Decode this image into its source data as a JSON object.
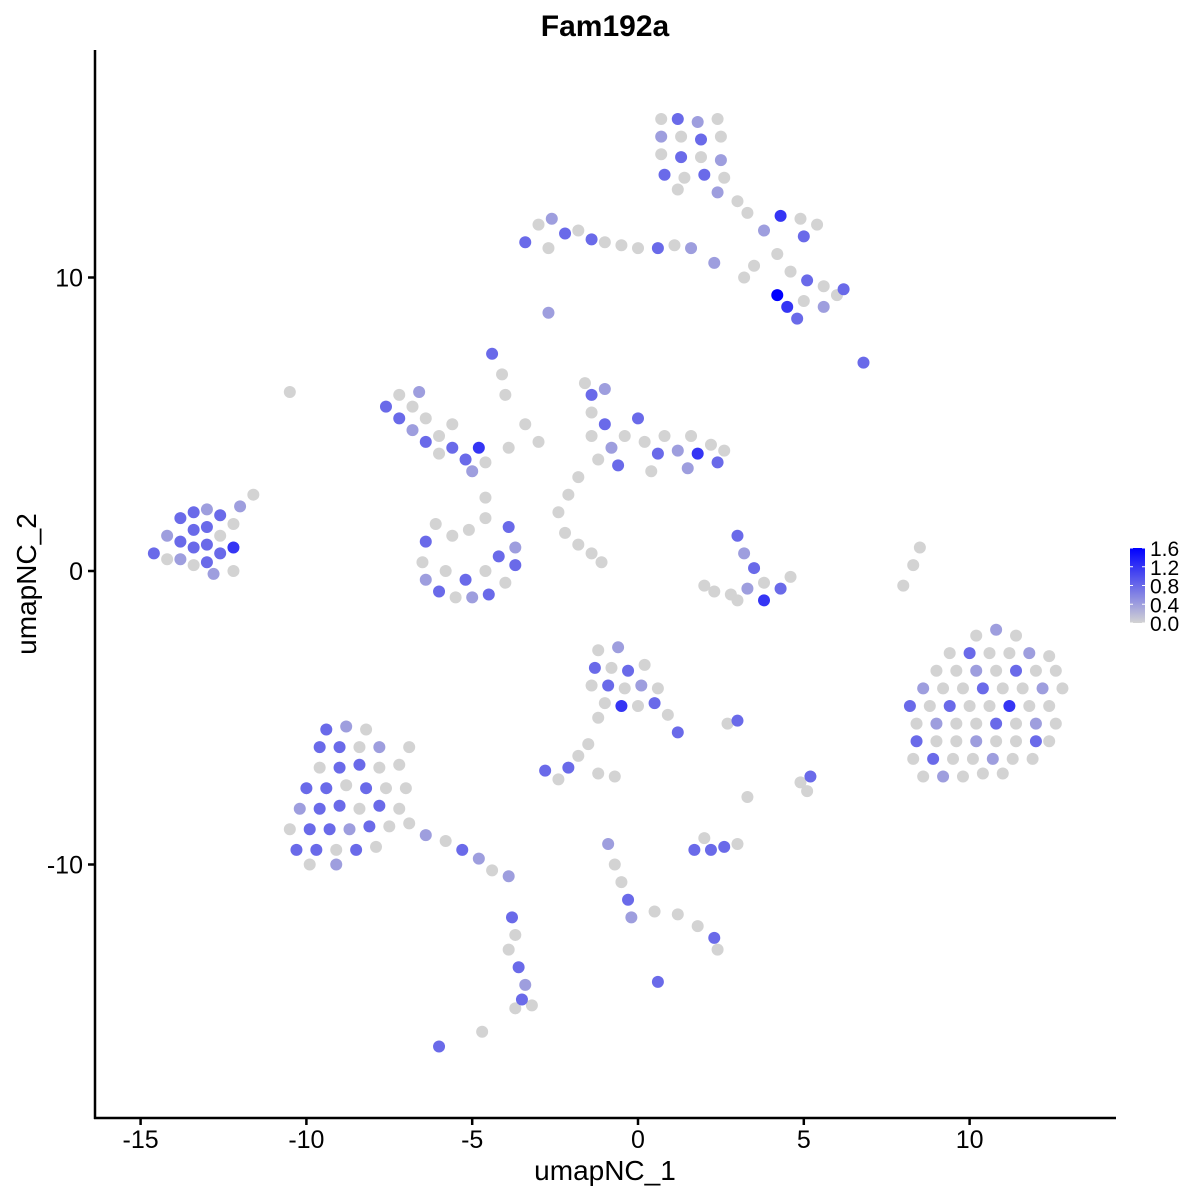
{
  "chart_data": {
    "type": "scatter",
    "title": "Fam192a",
    "xlabel": "umapNC_1",
    "ylabel": "umapNC_2",
    "xlim": [
      -16.4,
      14.4
    ],
    "ylim": [
      -18.6,
      17.75
    ],
    "xticks": [
      -15,
      -10,
      -5,
      0,
      5,
      10
    ],
    "yticks": [
      -10,
      0,
      10
    ],
    "grid": false,
    "legend": {
      "placement": "right",
      "type": "colorbar",
      "ticks": [
        "1.6",
        "1.2",
        "0.8",
        "0.4",
        "0.0"
      ],
      "range": [
        0,
        1.6
      ],
      "low_color": "#d3d3d3",
      "high_color": "#0000ff"
    },
    "point_format": [
      "umapNC_1",
      "umapNC_2",
      "expression"
    ],
    "points": [
      [
        -14.6,
        0.6,
        0.8
      ],
      [
        -14.2,
        1.2,
        0.4
      ],
      [
        -14.2,
        0.4,
        0
      ],
      [
        -13.8,
        1.8,
        0.8
      ],
      [
        -13.8,
        1.0,
        0.8
      ],
      [
        -13.8,
        0.4,
        0.4
      ],
      [
        -13.4,
        2.0,
        0.8
      ],
      [
        -13.4,
        1.4,
        0.8
      ],
      [
        -13.4,
        0.8,
        0.8
      ],
      [
        -13.4,
        0.2,
        0
      ],
      [
        -13.0,
        2.1,
        0.4
      ],
      [
        -13.0,
        1.5,
        0.8
      ],
      [
        -13.0,
        0.9,
        0.8
      ],
      [
        -13.0,
        0.3,
        0.8
      ],
      [
        -12.6,
        1.9,
        0.8
      ],
      [
        -12.6,
        1.2,
        0
      ],
      [
        -12.6,
        0.6,
        0.8
      ],
      [
        -12.2,
        1.6,
        0
      ],
      [
        -12.2,
        0.8,
        1.2
      ],
      [
        -12.2,
        0,
        0
      ],
      [
        -11.6,
        2.6,
        0
      ],
      [
        -12.0,
        2.2,
        0.4
      ],
      [
        -12.8,
        -0.1,
        0.4
      ],
      [
        0.7,
        15.4,
        0
      ],
      [
        1.2,
        15.4,
        0.8
      ],
      [
        1.8,
        15.3,
        0.4
      ],
      [
        2.4,
        15.4,
        0
      ],
      [
        0.7,
        14.8,
        0.4
      ],
      [
        1.3,
        14.8,
        0
      ],
      [
        1.9,
        14.7,
        0.8
      ],
      [
        2.5,
        14.8,
        0
      ],
      [
        0.7,
        14.2,
        0
      ],
      [
        1.3,
        14.1,
        0.8
      ],
      [
        1.9,
        14.1,
        0
      ],
      [
        2.5,
        14.0,
        0.4
      ],
      [
        0.8,
        13.5,
        0.8
      ],
      [
        1.4,
        13.4,
        0
      ],
      [
        2.0,
        13.5,
        0.8
      ],
      [
        2.6,
        13.4,
        0
      ],
      [
        1.2,
        13.0,
        0
      ],
      [
        2.4,
        12.9,
        0.4
      ],
      [
        3.0,
        12.6,
        0
      ],
      [
        -3.0,
        11.8,
        0
      ],
      [
        -2.6,
        12.0,
        0.4
      ],
      [
        -2.2,
        11.5,
        0.8
      ],
      [
        -1.8,
        11.6,
        0
      ],
      [
        -1.4,
        11.3,
        0.8
      ],
      [
        -1.0,
        11.2,
        0
      ],
      [
        -0.5,
        11.1,
        0
      ],
      [
        0.0,
        11.0,
        0
      ],
      [
        0.6,
        11.0,
        0.8
      ],
      [
        1.1,
        11.1,
        0
      ],
      [
        1.6,
        11.0,
        0.4
      ],
      [
        -3.4,
        11.2,
        0.8
      ],
      [
        -2.7,
        11.0,
        0
      ],
      [
        3.3,
        12.2,
        0
      ],
      [
        3.8,
        11.6,
        0.4
      ],
      [
        4.3,
        12.1,
        1.2
      ],
      [
        4.9,
        12.0,
        0
      ],
      [
        5.4,
        11.8,
        0
      ],
      [
        5.0,
        11.4,
        0.8
      ],
      [
        4.2,
        10.8,
        0
      ],
      [
        4.6,
        10.2,
        0
      ],
      [
        5.1,
        9.9,
        0.8
      ],
      [
        5.6,
        9.7,
        0
      ],
      [
        6.0,
        9.4,
        0
      ],
      [
        5.6,
        9.0,
        0.4
      ],
      [
        5.0,
        9.2,
        0
      ],
      [
        4.5,
        9.0,
        1.2
      ],
      [
        4.8,
        8.6,
        0.8
      ],
      [
        4.2,
        9.4,
        1.6
      ],
      [
        3.5,
        10.4,
        0
      ],
      [
        2.3,
        10.5,
        0.4
      ],
      [
        6.2,
        9.6,
        0.8
      ],
      [
        3.2,
        10.0,
        0
      ],
      [
        -2.7,
        8.8,
        0.4
      ],
      [
        6.8,
        7.1,
        0.8
      ],
      [
        -10.5,
        6.1,
        0
      ],
      [
        -4.4,
        7.4,
        0.8
      ],
      [
        -4.1,
        6.7,
        0
      ],
      [
        -7.6,
        5.6,
        0.8
      ],
      [
        -7.2,
        6.0,
        0
      ],
      [
        -7.2,
        5.2,
        0.8
      ],
      [
        -6.8,
        5.6,
        0
      ],
      [
        -6.8,
        4.8,
        0.4
      ],
      [
        -6.4,
        5.2,
        0
      ],
      [
        -6.4,
        4.4,
        0.8
      ],
      [
        -6.0,
        4.6,
        0
      ],
      [
        -6.0,
        4.0,
        0
      ],
      [
        -5.6,
        4.2,
        0.8
      ],
      [
        -5.2,
        3.8,
        0.8
      ],
      [
        -5.0,
        3.4,
        0.4
      ],
      [
        -4.6,
        3.7,
        0
      ],
      [
        -4.8,
        4.2,
        1.2
      ],
      [
        -5.6,
        5.0,
        0
      ],
      [
        -6.6,
        6.1,
        0.4
      ],
      [
        -3.9,
        4.2,
        0
      ],
      [
        -3.4,
        5.0,
        0
      ],
      [
        -4.0,
        6.0,
        0
      ],
      [
        -4.6,
        2.5,
        0
      ],
      [
        -4.6,
        1.8,
        0
      ],
      [
        -6.4,
        1.0,
        0.8
      ],
      [
        -6.5,
        0.3,
        0
      ],
      [
        -6.4,
        -0.3,
        0.4
      ],
      [
        -6.0,
        -0.7,
        0.8
      ],
      [
        -5.5,
        -0.9,
        0
      ],
      [
        -5.0,
        -0.9,
        0.4
      ],
      [
        -4.5,
        -0.8,
        0.8
      ],
      [
        -4.0,
        -0.4,
        0
      ],
      [
        -3.7,
        0.2,
        0.8
      ],
      [
        -3.7,
        0.8,
        0.4
      ],
      [
        -3.9,
        1.5,
        0.8
      ],
      [
        -5.8,
        0.0,
        0
      ],
      [
        -5.2,
        -0.3,
        0.8
      ],
      [
        -4.6,
        0.0,
        0
      ],
      [
        -4.2,
        0.5,
        0.8
      ],
      [
        -6.1,
        1.6,
        0
      ],
      [
        -5.6,
        1.2,
        0
      ],
      [
        -5.1,
        1.4,
        0
      ],
      [
        -1.4,
        6.0,
        0.8
      ],
      [
        -1.0,
        6.2,
        0.4
      ],
      [
        -1.4,
        5.4,
        0
      ],
      [
        -1.0,
        5.0,
        0.8
      ],
      [
        -1.4,
        4.6,
        0
      ],
      [
        -0.8,
        4.2,
        0.4
      ],
      [
        -1.2,
        3.8,
        0
      ],
      [
        -0.6,
        3.6,
        0.8
      ],
      [
        -0.4,
        4.6,
        0
      ],
      [
        0.0,
        5.2,
        0.8
      ],
      [
        0.2,
        4.4,
        0
      ],
      [
        0.6,
        4.0,
        0.8
      ],
      [
        0.8,
        4.6,
        0
      ],
      [
        1.2,
        4.1,
        0.4
      ],
      [
        1.6,
        4.6,
        0
      ],
      [
        1.8,
        4.0,
        1.2
      ],
      [
        2.2,
        4.3,
        0
      ],
      [
        2.4,
        3.7,
        0.8
      ],
      [
        2.6,
        4.1,
        0
      ],
      [
        1.5,
        3.5,
        0.4
      ],
      [
        0.4,
        3.4,
        0
      ],
      [
        -1.8,
        3.2,
        0
      ],
      [
        -2.1,
        2.6,
        0
      ],
      [
        -2.4,
        2.0,
        0
      ],
      [
        -1.6,
        6.4,
        0
      ],
      [
        -3.0,
        4.4,
        0
      ],
      [
        -2.2,
        1.3,
        0
      ],
      [
        -1.8,
        0.9,
        0
      ],
      [
        -1.4,
        0.6,
        0
      ],
      [
        -1.1,
        0.3,
        0
      ],
      [
        3.0,
        1.2,
        0.8
      ],
      [
        3.2,
        0.6,
        0.4
      ],
      [
        3.5,
        0.1,
        0.8
      ],
      [
        3.8,
        -0.4,
        0
      ],
      [
        3.3,
        -0.6,
        0.4
      ],
      [
        2.8,
        -0.8,
        0
      ],
      [
        2.3,
        -0.7,
        0
      ],
      [
        2.0,
        -0.5,
        0
      ],
      [
        3.8,
        -1.0,
        1.2
      ],
      [
        4.3,
        -0.6,
        0.8
      ],
      [
        4.6,
        -0.2,
        0
      ],
      [
        3.0,
        -1.0,
        0
      ],
      [
        8.0,
        -0.5,
        0
      ],
      [
        8.3,
        0.2,
        0
      ],
      [
        8.5,
        0.8,
        0
      ],
      [
        10.2,
        -2.2,
        0
      ],
      [
        10.8,
        -2.0,
        0.4
      ],
      [
        11.4,
        -2.2,
        0
      ],
      [
        9.4,
        -2.8,
        0
      ],
      [
        10.0,
        -2.8,
        0.8
      ],
      [
        10.6,
        -2.8,
        0
      ],
      [
        11.2,
        -2.8,
        0
      ],
      [
        11.8,
        -2.8,
        0.4
      ],
      [
        12.4,
        -2.9,
        0
      ],
      [
        9.0,
        -3.4,
        0
      ],
      [
        9.6,
        -3.4,
        0
      ],
      [
        10.2,
        -3.4,
        0.4
      ],
      [
        10.8,
        -3.4,
        0
      ],
      [
        11.4,
        -3.4,
        0.8
      ],
      [
        12.0,
        -3.4,
        0
      ],
      [
        12.6,
        -3.4,
        0
      ],
      [
        8.6,
        -4.0,
        0.4
      ],
      [
        9.2,
        -4.0,
        0
      ],
      [
        9.8,
        -4.0,
        0
      ],
      [
        10.4,
        -4.0,
        0.8
      ],
      [
        11.0,
        -4.0,
        0
      ],
      [
        11.6,
        -4.0,
        0
      ],
      [
        12.2,
        -4.0,
        0.4
      ],
      [
        12.8,
        -4.0,
        0
      ],
      [
        8.2,
        -4.6,
        0.8
      ],
      [
        8.8,
        -4.6,
        0
      ],
      [
        9.4,
        -4.6,
        0.8
      ],
      [
        10.0,
        -4.6,
        0
      ],
      [
        10.6,
        -4.6,
        0
      ],
      [
        11.2,
        -4.6,
        1.2
      ],
      [
        11.8,
        -4.6,
        0
      ],
      [
        12.4,
        -4.6,
        0
      ],
      [
        8.4,
        -5.2,
        0
      ],
      [
        9.0,
        -5.2,
        0.4
      ],
      [
        9.6,
        -5.2,
        0
      ],
      [
        10.2,
        -5.2,
        0
      ],
      [
        10.8,
        -5.2,
        0.8
      ],
      [
        11.4,
        -5.2,
        0
      ],
      [
        12.0,
        -5.2,
        0.4
      ],
      [
        12.6,
        -5.2,
        0
      ],
      [
        8.4,
        -5.8,
        0.8
      ],
      [
        9.0,
        -5.8,
        0
      ],
      [
        9.6,
        -5.8,
        0
      ],
      [
        10.2,
        -5.8,
        0.4
      ],
      [
        10.8,
        -5.8,
        0
      ],
      [
        11.4,
        -5.8,
        0
      ],
      [
        12.0,
        -5.8,
        0.8
      ],
      [
        12.4,
        -5.8,
        0
      ],
      [
        8.3,
        -6.4,
        0
      ],
      [
        8.9,
        -6.4,
        0.8
      ],
      [
        9.5,
        -6.4,
        0
      ],
      [
        10.1,
        -6.4,
        0
      ],
      [
        10.7,
        -6.4,
        0.4
      ],
      [
        11.3,
        -6.4,
        0
      ],
      [
        11.9,
        -6.4,
        0
      ],
      [
        8.6,
        -7.0,
        0
      ],
      [
        9.2,
        -7.0,
        0.4
      ],
      [
        9.8,
        -7.0,
        0
      ],
      [
        10.4,
        -6.9,
        0
      ],
      [
        11.0,
        -6.9,
        0
      ],
      [
        -9.4,
        -5.4,
        0.8
      ],
      [
        -8.8,
        -5.3,
        0.4
      ],
      [
        -8.2,
        -5.4,
        0
      ],
      [
        -9.6,
        -6.0,
        0.8
      ],
      [
        -9.0,
        -6.0,
        0.8
      ],
      [
        -8.4,
        -6.0,
        0
      ],
      [
        -7.8,
        -6.0,
        0.4
      ],
      [
        -9.6,
        -6.7,
        0
      ],
      [
        -9.0,
        -6.7,
        0.8
      ],
      [
        -8.4,
        -6.6,
        0.8
      ],
      [
        -7.8,
        -6.7,
        0
      ],
      [
        -7.2,
        -6.6,
        0
      ],
      [
        -10.0,
        -7.4,
        0.8
      ],
      [
        -9.4,
        -7.4,
        0.8
      ],
      [
        -8.8,
        -7.3,
        0
      ],
      [
        -8.2,
        -7.4,
        0.8
      ],
      [
        -7.6,
        -7.4,
        0
      ],
      [
        -7.0,
        -7.4,
        0
      ],
      [
        -10.2,
        -8.1,
        0.4
      ],
      [
        -9.6,
        -8.1,
        0.8
      ],
      [
        -9.0,
        -8.0,
        0.8
      ],
      [
        -8.4,
        -8.1,
        0
      ],
      [
        -7.8,
        -8.0,
        0.8
      ],
      [
        -7.2,
        -8.1,
        0
      ],
      [
        -10.5,
        -8.8,
        0
      ],
      [
        -9.9,
        -8.8,
        0.8
      ],
      [
        -9.3,
        -8.8,
        0.8
      ],
      [
        -8.7,
        -8.8,
        0.4
      ],
      [
        -8.1,
        -8.7,
        0.8
      ],
      [
        -7.5,
        -8.7,
        0
      ],
      [
        -6.9,
        -8.6,
        0
      ],
      [
        -10.3,
        -9.5,
        0.8
      ],
      [
        -9.7,
        -9.5,
        0.8
      ],
      [
        -9.1,
        -9.5,
        0
      ],
      [
        -8.5,
        -9.5,
        0.8
      ],
      [
        -7.9,
        -9.4,
        0
      ],
      [
        -9.9,
        -10.0,
        0
      ],
      [
        -9.1,
        -10.0,
        0.4
      ],
      [
        -6.4,
        -9.0,
        0.4
      ],
      [
        -5.8,
        -9.2,
        0
      ],
      [
        -5.3,
        -9.5,
        0.8
      ],
      [
        -4.8,
        -9.8,
        0.4
      ],
      [
        -4.4,
        -10.2,
        0
      ],
      [
        -3.9,
        -10.4,
        0.4
      ],
      [
        -6.9,
        -6.0,
        0
      ],
      [
        -1.2,
        -2.7,
        0
      ],
      [
        -0.6,
        -2.6,
        0.4
      ],
      [
        -1.3,
        -3.3,
        0.8
      ],
      [
        -0.8,
        -3.3,
        0
      ],
      [
        -0.3,
        -3.4,
        0.8
      ],
      [
        0.2,
        -3.2,
        0
      ],
      [
        -1.4,
        -3.9,
        0
      ],
      [
        -0.9,
        -3.9,
        0.8
      ],
      [
        -0.4,
        -4.0,
        0
      ],
      [
        0.1,
        -3.9,
        0.4
      ],
      [
        0.6,
        -4.0,
        0
      ],
      [
        -1.0,
        -4.5,
        0
      ],
      [
        -0.5,
        -4.6,
        1.2
      ],
      [
        0.0,
        -4.6,
        0
      ],
      [
        0.5,
        -4.5,
        0.8
      ],
      [
        0.9,
        -4.9,
        0
      ],
      [
        1.2,
        -5.5,
        0.8
      ],
      [
        -1.2,
        -5.0,
        0
      ],
      [
        -2.8,
        -6.8,
        0.8
      ],
      [
        -2.4,
        -7.1,
        0
      ],
      [
        -2.1,
        -6.7,
        0.8
      ],
      [
        -1.8,
        -6.3,
        0
      ],
      [
        -1.5,
        -5.9,
        0
      ],
      [
        -1.2,
        -6.9,
        0
      ],
      [
        -0.7,
        -7.0,
        0
      ],
      [
        3.0,
        -5.1,
        0.8
      ],
      [
        2.7,
        -5.2,
        0
      ],
      [
        1.7,
        -9.5,
        0.8
      ],
      [
        2.2,
        -9.5,
        0.8
      ],
      [
        2.6,
        -9.4,
        0.8
      ],
      [
        2.0,
        -9.1,
        0
      ],
      [
        3.0,
        -9.3,
        0
      ],
      [
        4.9,
        -7.2,
        0
      ],
      [
        5.2,
        -7.0,
        0.8
      ],
      [
        5.1,
        -7.5,
        0
      ],
      [
        3.3,
        -7.7,
        0
      ],
      [
        -0.9,
        -9.3,
        0.4
      ],
      [
        -0.7,
        -10.0,
        0
      ],
      [
        -0.5,
        -10.6,
        0
      ],
      [
        -0.3,
        -11.2,
        0.8
      ],
      [
        -0.2,
        -11.8,
        0.4
      ],
      [
        0.5,
        -11.6,
        0
      ],
      [
        1.2,
        -11.7,
        0
      ],
      [
        1.8,
        -12.1,
        0
      ],
      [
        2.3,
        -12.5,
        0.8
      ],
      [
        2.4,
        -12.9,
        0
      ],
      [
        0.6,
        -14.0,
        0.8
      ],
      [
        -3.8,
        -11.8,
        0.8
      ],
      [
        -3.7,
        -12.4,
        0
      ],
      [
        -3.6,
        -13.5,
        0.8
      ],
      [
        -3.4,
        -14.1,
        0.4
      ],
      [
        -3.5,
        -14.6,
        0.8
      ],
      [
        -3.7,
        -14.9,
        0
      ],
      [
        -3.2,
        -14.8,
        0
      ],
      [
        -6.0,
        -16.2,
        0.8
      ],
      [
        -4.7,
        -15.7,
        0
      ],
      [
        -3.9,
        -12.9,
        0
      ]
    ]
  }
}
